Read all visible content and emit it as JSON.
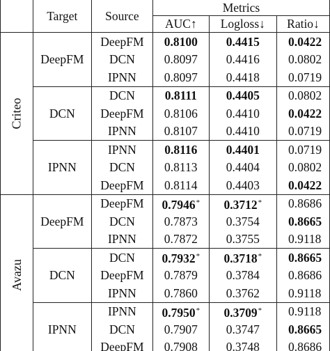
{
  "header": {
    "target": "Target",
    "source": "Source",
    "metrics": "Metrics",
    "auc": "AUC↑",
    "logloss": "Logloss↓",
    "ratio": "Ratio↓"
  },
  "datasets": [
    {
      "name": "Criteo",
      "groups": [
        {
          "target": "DeepFM",
          "rows": [
            {
              "source": "DeepFM",
              "auc": "0.8100",
              "auc_bold": true,
              "auc_star": false,
              "logloss": "0.4415",
              "ll_bold": true,
              "ll_star": false,
              "ratio": "0.0422",
              "ratio_bold": true
            },
            {
              "source": "DCN",
              "auc": "0.8097",
              "auc_bold": false,
              "auc_star": false,
              "logloss": "0.4416",
              "ll_bold": false,
              "ll_star": false,
              "ratio": "0.0802",
              "ratio_bold": false
            },
            {
              "source": "IPNN",
              "auc": "0.8097",
              "auc_bold": false,
              "auc_star": false,
              "logloss": "0.4418",
              "ll_bold": false,
              "ll_star": false,
              "ratio": "0.0719",
              "ratio_bold": false
            }
          ]
        },
        {
          "target": "DCN",
          "rows": [
            {
              "source": "DCN",
              "auc": "0.8111",
              "auc_bold": true,
              "auc_star": false,
              "logloss": "0.4405",
              "ll_bold": true,
              "ll_star": false,
              "ratio": "0.0802",
              "ratio_bold": false
            },
            {
              "source": "DeepFM",
              "auc": "0.8106",
              "auc_bold": false,
              "auc_star": false,
              "logloss": "0.4410",
              "ll_bold": false,
              "ll_star": false,
              "ratio": "0.0422",
              "ratio_bold": true
            },
            {
              "source": "IPNN",
              "auc": "0.8107",
              "auc_bold": false,
              "auc_star": false,
              "logloss": "0.4410",
              "ll_bold": false,
              "ll_star": false,
              "ratio": "0.0719",
              "ratio_bold": false
            }
          ]
        },
        {
          "target": "IPNN",
          "rows": [
            {
              "source": "IPNN",
              "auc": "0.8116",
              "auc_bold": true,
              "auc_star": false,
              "logloss": "0.4401",
              "ll_bold": true,
              "ll_star": false,
              "ratio": "0.0719",
              "ratio_bold": false
            },
            {
              "source": "DCN",
              "auc": "0.8113",
              "auc_bold": false,
              "auc_star": false,
              "logloss": "0.4404",
              "ll_bold": false,
              "ll_star": false,
              "ratio": "0.0802",
              "ratio_bold": false
            },
            {
              "source": "DeepFM",
              "auc": "0.8114",
              "auc_bold": false,
              "auc_star": false,
              "logloss": "0.4403",
              "ll_bold": false,
              "ll_star": false,
              "ratio": "0.0422",
              "ratio_bold": true
            }
          ]
        }
      ]
    },
    {
      "name": "Avazu",
      "groups": [
        {
          "target": "DeepFM",
          "rows": [
            {
              "source": "DeepFM",
              "auc": "0.7946",
              "auc_bold": true,
              "auc_star": true,
              "logloss": "0.3712",
              "ll_bold": true,
              "ll_star": true,
              "ratio": "0.8686",
              "ratio_bold": false
            },
            {
              "source": "DCN",
              "auc": "0.7873",
              "auc_bold": false,
              "auc_star": false,
              "logloss": "0.3754",
              "ll_bold": false,
              "ll_star": false,
              "ratio": "0.8665",
              "ratio_bold": true
            },
            {
              "source": "IPNN",
              "auc": "0.7872",
              "auc_bold": false,
              "auc_star": false,
              "logloss": "0.3755",
              "ll_bold": false,
              "ll_star": false,
              "ratio": "0.9118",
              "ratio_bold": false
            }
          ]
        },
        {
          "target": "DCN",
          "rows": [
            {
              "source": "DCN",
              "auc": "0.7932",
              "auc_bold": true,
              "auc_star": true,
              "logloss": "0.3718",
              "ll_bold": true,
              "ll_star": true,
              "ratio": "0.8665",
              "ratio_bold": true
            },
            {
              "source": "DeepFM",
              "auc": "0.7879",
              "auc_bold": false,
              "auc_star": false,
              "logloss": "0.3784",
              "ll_bold": false,
              "ll_star": false,
              "ratio": "0.8686",
              "ratio_bold": false
            },
            {
              "source": "IPNN",
              "auc": "0.7860",
              "auc_bold": false,
              "auc_star": false,
              "logloss": "0.3762",
              "ll_bold": false,
              "ll_star": false,
              "ratio": "0.9118",
              "ratio_bold": false
            }
          ]
        },
        {
          "target": "IPNN",
          "rows": [
            {
              "source": "IPNN",
              "auc": "0.7950",
              "auc_bold": true,
              "auc_star": true,
              "logloss": "0.3709",
              "ll_bold": true,
              "ll_star": true,
              "ratio": "0.9118",
              "ratio_bold": false
            },
            {
              "source": "DCN",
              "auc": "0.7907",
              "auc_bold": false,
              "auc_star": false,
              "logloss": "0.3747",
              "ll_bold": false,
              "ll_star": false,
              "ratio": "0.8665",
              "ratio_bold": true
            },
            {
              "source": "DeepFM",
              "auc": "0.7908",
              "auc_bold": false,
              "auc_star": false,
              "logloss": "0.3748",
              "ll_bold": false,
              "ll_star": false,
              "ratio": "0.8686",
              "ratio_bold": false
            }
          ]
        }
      ]
    }
  ],
  "star_symbol": "*"
}
